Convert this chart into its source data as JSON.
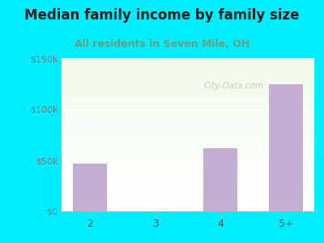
{
  "title": "Median family income by family size",
  "subtitle": "All residents in Seven Mile, OH",
  "categories": [
    "2",
    "3",
    "4",
    "5+"
  ],
  "values": [
    47000,
    0,
    62000,
    125000
  ],
  "bar_color": "#c4aed4",
  "title_fontsize": 12,
  "subtitle_fontsize": 9,
  "subtitle_color": "#6b9e7a",
  "title_color": "#222222",
  "background_outer": "#00eeff",
  "ylim": [
    0,
    150000
  ],
  "yticks": [
    0,
    50000,
    100000,
    150000
  ],
  "ytick_labels": [
    "$0",
    "$50k",
    "$100k",
    "$150k"
  ],
  "watermark": "City-Data.com"
}
